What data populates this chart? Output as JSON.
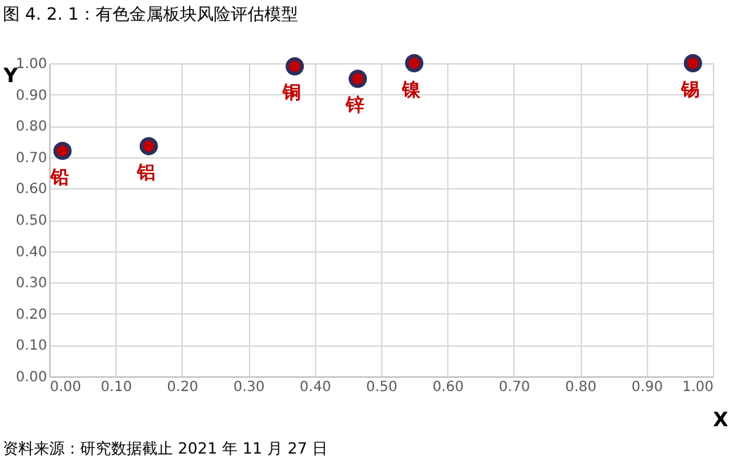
{
  "chart_data": {
    "type": "scatter",
    "title": "图 4. 2. 1：有色金属板块风险评估模型",
    "xlabel": "X",
    "ylabel": "Y",
    "x": [
      0.02,
      0.15,
      0.37,
      0.465,
      0.55,
      0.97
    ],
    "series": [
      {
        "color": "#c00000",
        "values": [
          0.72,
          0.735,
          0.99,
          0.95,
          1.0,
          1.0
        ]
      }
    ],
    "annotations": [
      {
        "text": "铅",
        "x": 0.02,
        "y": 0.72
      },
      {
        "text": "铝",
        "x": 0.15,
        "y": 0.735
      },
      {
        "text": "铜",
        "x": 0.37,
        "y": 0.99
      },
      {
        "text": "锌",
        "x": 0.465,
        "y": 0.95
      },
      {
        "text": "镍",
        "x": 0.55,
        "y": 1.0
      },
      {
        "text": "锡",
        "x": 0.97,
        "y": 1.0
      },
      "资料来源：研究数据截止 2021 年 11 月 27 日"
    ],
    "xlim": [
      0,
      1
    ],
    "ylim": [
      0,
      1
    ],
    "xticks": [
      {
        "value": 0,
        "label": "0.00"
      },
      {
        "value": 0.1,
        "label": "0.10"
      },
      {
        "value": 0.2,
        "label": "0.20"
      },
      {
        "value": 0.3,
        "label": "0.30"
      },
      {
        "value": 0.4,
        "label": "0.40"
      },
      {
        "value": 0.5,
        "label": "0.50"
      },
      {
        "value": 0.6,
        "label": "0.60"
      },
      {
        "value": 0.7,
        "label": "0.70"
      },
      {
        "value": 0.8,
        "label": "0.80"
      },
      {
        "value": 0.9,
        "label": "0.90"
      },
      {
        "value": 1.0,
        "label": "1.00"
      }
    ],
    "yticks": [
      {
        "value": 0,
        "label": "0.00"
      },
      {
        "value": 0.1,
        "label": "0.10"
      },
      {
        "value": 0.2,
        "label": "0.20"
      },
      {
        "value": 0.3,
        "label": "0.30"
      },
      {
        "value": 0.4,
        "label": "0.40"
      },
      {
        "value": 0.5,
        "label": "0.50"
      },
      {
        "value": 0.6,
        "label": "0.60"
      },
      {
        "value": 0.7,
        "label": "0.70"
      },
      {
        "value": 0.8,
        "label": "0.80"
      },
      {
        "value": 0.9,
        "label": "0.90"
      },
      {
        "value": 1.0,
        "label": "1.00"
      }
    ],
    "grid": true,
    "marker": "circle"
  }
}
